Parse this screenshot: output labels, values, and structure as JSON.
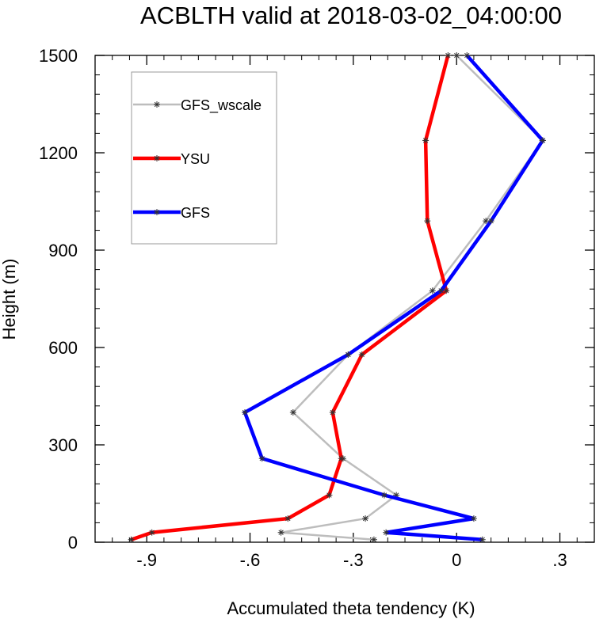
{
  "chart_data": {
    "type": "line",
    "title": "ACBLTH valid at 2018-03-02_04:00:00",
    "xlabel": "Accumulated theta tendency (K)",
    "ylabel": "Height (m)",
    "xlim": [
      -1.05,
      0.4
    ],
    "ylim": [
      0,
      1500
    ],
    "xticks": [
      -0.9,
      -0.6,
      -0.3,
      0,
      0.3
    ],
    "xtick_labels": [
      "-.9",
      "-.6",
      "-.3",
      "0",
      ".3"
    ],
    "yticks": [
      0,
      300,
      600,
      900,
      1200,
      1500
    ],
    "ytick_labels": [
      "0",
      "300",
      "600",
      "900",
      "1200",
      "1500"
    ],
    "grid": false,
    "legend_position": "top-left",
    "series": [
      {
        "name": "GFS_wscale",
        "color": "#bdbdbd",
        "line_width": 2.5,
        "points": [
          {
            "x": -0.24,
            "y": 8
          },
          {
            "x": -0.51,
            "y": 30
          },
          {
            "x": -0.265,
            "y": 73
          },
          {
            "x": -0.175,
            "y": 145
          },
          {
            "x": -0.33,
            "y": 258
          },
          {
            "x": -0.475,
            "y": 400
          },
          {
            "x": -0.315,
            "y": 578
          },
          {
            "x": -0.07,
            "y": 775
          },
          {
            "x": 0.085,
            "y": 990
          },
          {
            "x": 0.25,
            "y": 1238
          },
          {
            "x": 0.0,
            "y": 1500
          }
        ]
      },
      {
        "name": "YSU",
        "color": "#ff0000",
        "line_width": 4.5,
        "points": [
          {
            "x": -0.945,
            "y": 8
          },
          {
            "x": -0.885,
            "y": 30
          },
          {
            "x": -0.49,
            "y": 73
          },
          {
            "x": -0.37,
            "y": 145
          },
          {
            "x": -0.335,
            "y": 258
          },
          {
            "x": -0.36,
            "y": 400
          },
          {
            "x": -0.275,
            "y": 578
          },
          {
            "x": -0.03,
            "y": 775
          },
          {
            "x": -0.085,
            "y": 990
          },
          {
            "x": -0.09,
            "y": 1238
          },
          {
            "x": -0.025,
            "y": 1500
          }
        ]
      },
      {
        "name": "GFS",
        "color": "#0000ff",
        "line_width": 4.5,
        "points": [
          {
            "x": 0.075,
            "y": 8
          },
          {
            "x": -0.205,
            "y": 30
          },
          {
            "x": 0.05,
            "y": 73
          },
          {
            "x": -0.21,
            "y": 145
          },
          {
            "x": -0.565,
            "y": 258
          },
          {
            "x": -0.615,
            "y": 400
          },
          {
            "x": -0.315,
            "y": 578
          },
          {
            "x": -0.045,
            "y": 775
          },
          {
            "x": 0.1,
            "y": 990
          },
          {
            "x": 0.25,
            "y": 1238
          },
          {
            "x": 0.03,
            "y": 1500
          }
        ]
      }
    ]
  }
}
